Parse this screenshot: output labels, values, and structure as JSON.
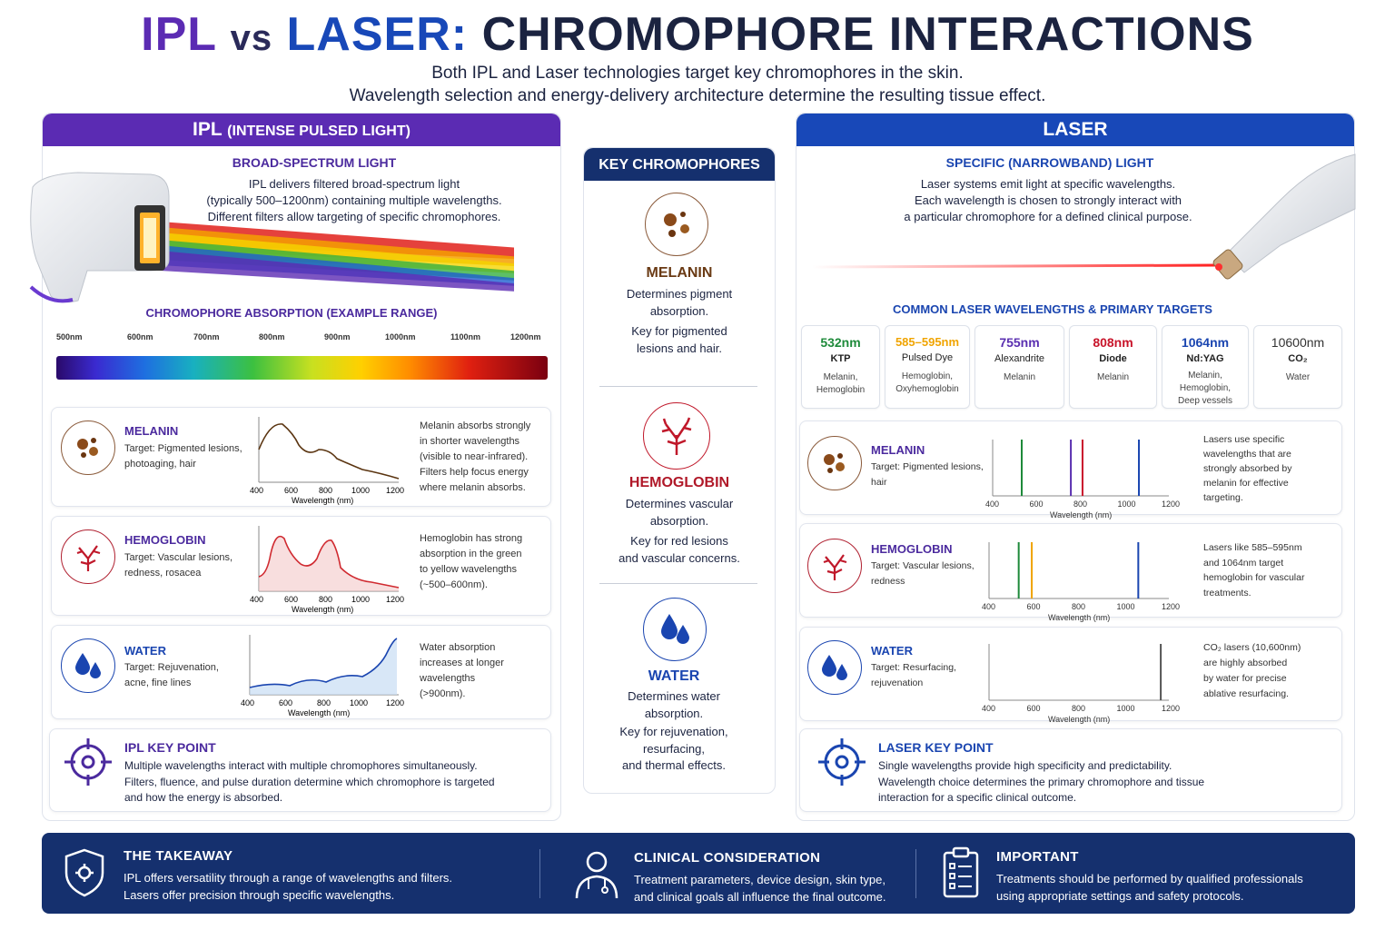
{
  "header": {
    "title_ipl": "IPL",
    "title_vs": "vs",
    "title_laser": "LASER:",
    "title_rest": "CHROMOPHORE INTERACTIONS",
    "subtitle_line1": "Both IPL and Laser technologies target key chromophores in the skin.",
    "subtitle_line2": "Wavelength selection and energy-delivery architecture determine the resulting tissue effect."
  },
  "ipl": {
    "header_main": "IPL",
    "header_sub": "(INTENSE PULSED LIGHT)",
    "section_title": "BROAD-SPECTRUM LIGHT",
    "desc1": "IPL delivers filtered broad-spectrum light",
    "desc2": "(typically 500–1200nm) containing multiple wavelengths.",
    "desc3": "Different filters allow targeting of specific chromophores.",
    "absorption_title": "CHROMOPHORE ABSORPTION (EXAMPLE RANGE)",
    "spectrum_ticks": [
      "500nm",
      "600nm",
      "700nm",
      "800nm",
      "900nm",
      "1000nm",
      "1100nm",
      "1200nm"
    ],
    "axis_ticks": [
      "400",
      "600",
      "800",
      "1000",
      "1200"
    ],
    "axis_label": "Wavelength (nm)",
    "rows": [
      {
        "name": "MELANIN",
        "target1": "Target: Pigmented lesions,",
        "target2": "photoaging, hair",
        "note": [
          "Melanin absorbs strongly",
          "in shorter wavelengths",
          "(visible to near-infrared).",
          "Filters help focus energy",
          "where melanin absorbs."
        ]
      },
      {
        "name": "HEMOGLOBIN",
        "target1": "Target: Vascular lesions,",
        "target2": "redness, rosacea",
        "note": [
          "Hemoglobin has strong",
          "absorption in the green",
          "to yellow wavelengths",
          "(~500–600nm)."
        ]
      },
      {
        "name": "WATER",
        "target1": "Target: Rejuvenation,",
        "target2": "acne, fine lines",
        "note": [
          "Water absorption",
          "increases at longer",
          "wavelengths",
          "(>900nm)."
        ]
      }
    ],
    "key_title": "IPL KEY POINT",
    "key_line1": "Multiple wavelengths interact with multiple chromophores simultaneously.",
    "key_line2": "Filters, fluence, and pulse duration determine which chromophore is targeted",
    "key_line3": "and how the energy is absorbed."
  },
  "center": {
    "header": "KEY CHROMOPHORES",
    "items": [
      {
        "name": "MELANIN",
        "d1": "Determines pigment",
        "d2": "absorption.",
        "k1": "Key for pigmented",
        "k2": "lesions and hair."
      },
      {
        "name": "HEMOGLOBIN",
        "d1": "Determines vascular",
        "d2": "absorption.",
        "k1": "Key for red lesions",
        "k2": "and vascular concerns."
      },
      {
        "name": "WATER",
        "d1": "Determines water",
        "d2": "absorption.",
        "k1": "Key for rejuvenation,",
        "k2": "resurfacing,",
        "k3": "and thermal effects."
      }
    ]
  },
  "laser": {
    "header": "LASER",
    "section_title": "SPECIFIC (NARROWBAND) LIGHT",
    "desc1": "Laser systems emit light at specific wavelengths.",
    "desc2": "Each wavelength is chosen to strongly interact with",
    "desc3": "a particular chromophore for a defined clinical purpose.",
    "wavelengths_title": "COMMON LASER WAVELENGTHS & PRIMARY TARGETS",
    "wavelengths": [
      {
        "nm": "532nm",
        "type": "KTP",
        "targets": [
          "Melanin,",
          "Hemoglobin"
        ],
        "color": "#1e8a3a"
      },
      {
        "nm": "585–595nm",
        "type": "Pulsed Dye",
        "targets": [
          "Hemoglobin,",
          "Oxyhemoglobin"
        ],
        "color": "#f0a400"
      },
      {
        "nm": "755nm",
        "type": "Alexandrite",
        "targets": [
          "Melanin"
        ],
        "color": "#5a2fb0"
      },
      {
        "nm": "808nm",
        "type": "Diode",
        "targets": [
          "Melanin"
        ],
        "color": "#c8142a"
      },
      {
        "nm": "1064nm",
        "type": "Nd:YAG",
        "targets": [
          "Melanin,",
          "Hemoglobin,",
          "Deep vessels"
        ],
        "color": "#1a45b0"
      },
      {
        "nm": "10600nm",
        "type": "CO₂",
        "targets": [
          "Water"
        ],
        "color": "#444444"
      }
    ],
    "axis_ticks": [
      "400",
      "600",
      "800",
      "1000",
      "1200"
    ],
    "axis_label": "Wavelength (nm)",
    "rows": [
      {
        "name": "MELANIN",
        "target1": "Target: Pigmented lesions,",
        "target2": "hair",
        "note": [
          "Lasers use specific",
          "wavelengths that are",
          "strongly absorbed by",
          "melanin for effective",
          "targeting."
        ]
      },
      {
        "name": "HEMOGLOBIN",
        "target1": "Target: Vascular lesions,",
        "target2": "redness",
        "note": [
          "Lasers like 585–595nm",
          "and 1064nm target",
          "hemoglobin for vascular",
          "treatments."
        ]
      },
      {
        "name": "WATER",
        "target1": "Target: Resurfacing,",
        "target2": "rejuvenation",
        "note": [
          "CO₂ lasers (10,600nm)",
          "are highly absorbed",
          "by water for precise",
          "ablative resurfacing."
        ]
      }
    ],
    "key_title": "LASER KEY POINT",
    "key_line1": "Single wavelengths provide high specificity and predictability.",
    "key_line2": "Wavelength choice determines the primary chromophore and tissue",
    "key_line3": "interaction for a specific clinical outcome."
  },
  "footer": {
    "takeaway_title": "THE TAKEAWAY",
    "takeaway_1": "IPL offers versatility through a range of wavelengths and filters.",
    "takeaway_2": "Lasers offer precision through specific wavelengths.",
    "clinical_title": "CLINICAL CONSIDERATION",
    "clinical_1": "Treatment parameters, device design, skin type,",
    "clinical_2": "and clinical goals all influence the final outcome.",
    "important_title": "IMPORTANT",
    "important_1": "Treatments should be performed by qualified professionals",
    "important_2": "using appropriate settings and safety protocols."
  }
}
